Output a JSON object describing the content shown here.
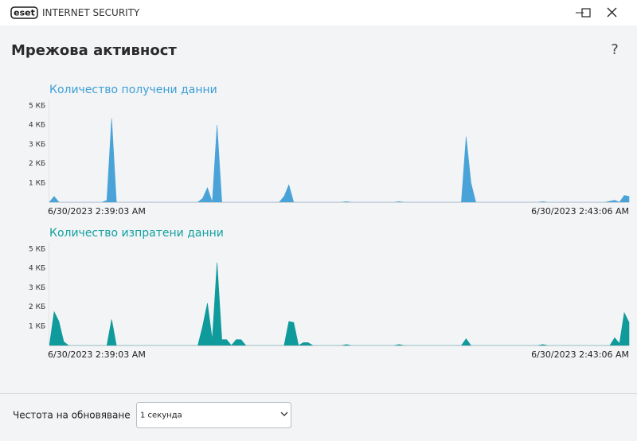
{
  "window": {
    "logo": "eset",
    "product": "INTERNET SECURITY"
  },
  "header": {
    "title": "Мрежова активност",
    "help": "?"
  },
  "chart_data": [
    {
      "type": "area",
      "title": "Количество получени данни",
      "color": "#4aa3d8",
      "title_color": "#3d9fd6",
      "ylim": [
        0,
        5
      ],
      "yticks": [
        {
          "value": 1,
          "label": "1 КБ"
        },
        {
          "value": 2,
          "label": "2 КБ"
        },
        {
          "value": 3,
          "label": "3 КБ"
        },
        {
          "value": 4,
          "label": "4 КБ"
        },
        {
          "value": 5,
          "label": "5 КБ"
        }
      ],
      "categories": [
        "6/30/2023 2:39:03 AM",
        null,
        null,
        null,
        null,
        null,
        null,
        null,
        null,
        null,
        null,
        null,
        null,
        null,
        null,
        null,
        null,
        null,
        null,
        null,
        null,
        null,
        null,
        null,
        null,
        null,
        null,
        null,
        null,
        null,
        null,
        null,
        null,
        null,
        null,
        null,
        null,
        null,
        null,
        null,
        null,
        null,
        null,
        null,
        null,
        null,
        null,
        null,
        null,
        null,
        null,
        null,
        null,
        null,
        null,
        null,
        null,
        null,
        null,
        null,
        null,
        null,
        null,
        null,
        null,
        null,
        null,
        null,
        null,
        null,
        null,
        null,
        null,
        null,
        null,
        null,
        null,
        null,
        null,
        null,
        null,
        null,
        null,
        null,
        null,
        null,
        null,
        null,
        null,
        null,
        null,
        null,
        null,
        null,
        null,
        null,
        null,
        null,
        null,
        null,
        null,
        null,
        null,
        null,
        null,
        null,
        null,
        null,
        null,
        null,
        null,
        null,
        null,
        null,
        null,
        null,
        null,
        null,
        null,
        null,
        null,
        "6/30/2023 2:43:06 AM"
      ],
      "values": [
        0,
        0.3,
        0,
        0,
        0,
        0,
        0,
        0,
        0,
        0,
        0,
        0,
        0.1,
        4.35,
        0,
        0,
        0,
        0,
        0,
        0,
        0,
        0,
        0,
        0,
        0,
        0,
        0,
        0,
        0,
        0,
        0,
        0,
        0.2,
        0.75,
        0,
        4.0,
        0,
        0,
        0,
        0,
        0,
        0,
        0,
        0,
        0,
        0,
        0,
        0,
        0,
        0.3,
        0.9,
        0,
        0,
        0,
        0,
        0,
        0,
        0,
        0,
        0,
        0,
        0,
        0.03,
        0,
        0,
        0,
        0,
        0,
        0,
        0,
        0,
        0,
        0,
        0.03,
        0,
        0,
        0,
        0,
        0,
        0,
        0,
        0,
        0,
        0,
        0,
        0,
        0,
        3.4,
        1.0,
        0,
        0,
        0,
        0,
        0,
        0,
        0,
        0,
        0,
        0,
        0,
        0,
        0,
        0,
        0.03,
        0,
        0,
        0,
        0,
        0,
        0,
        0,
        0,
        0,
        0,
        0,
        0,
        0,
        0.05,
        0.1,
        0,
        0.35,
        0.3
      ]
    },
    {
      "type": "area",
      "title": "Количество изпратени данни",
      "color": "#0f9a9b",
      "title_color": "#13a0a0",
      "ylim": [
        0,
        5
      ],
      "yticks": [
        {
          "value": 1,
          "label": "1 КБ"
        },
        {
          "value": 2,
          "label": "2 КБ"
        },
        {
          "value": 3,
          "label": "3 КБ"
        },
        {
          "value": 4,
          "label": "4 КБ"
        },
        {
          "value": 5,
          "label": "5 КБ"
        }
      ],
      "categories": [
        "6/30/2023 2:39:03 AM",
        null,
        null,
        null,
        null,
        null,
        null,
        null,
        null,
        null,
        null,
        null,
        null,
        null,
        null,
        null,
        null,
        null,
        null,
        null,
        null,
        null,
        null,
        null,
        null,
        null,
        null,
        null,
        null,
        null,
        null,
        null,
        null,
        null,
        null,
        null,
        null,
        null,
        null,
        null,
        null,
        null,
        null,
        null,
        null,
        null,
        null,
        null,
        null,
        null,
        null,
        null,
        null,
        null,
        null,
        null,
        null,
        null,
        null,
        null,
        null,
        null,
        null,
        null,
        null,
        null,
        null,
        null,
        null,
        null,
        null,
        null,
        null,
        null,
        null,
        null,
        null,
        null,
        null,
        null,
        null,
        null,
        null,
        null,
        null,
        null,
        null,
        null,
        null,
        null,
        null,
        null,
        null,
        null,
        null,
        null,
        null,
        null,
        null,
        null,
        null,
        null,
        null,
        null,
        null,
        null,
        null,
        null,
        null,
        null,
        null,
        null,
        null,
        null,
        null,
        null,
        null,
        null,
        null,
        null,
        null,
        "6/30/2023 2:43:06 AM"
      ],
      "values": [
        0,
        1.75,
        1.25,
        0.2,
        0,
        0,
        0,
        0,
        0,
        0,
        0,
        0,
        0,
        1.35,
        0,
        0,
        0,
        0,
        0,
        0,
        0,
        0,
        0,
        0,
        0,
        0,
        0,
        0,
        0,
        0,
        0,
        0,
        1.0,
        2.2,
        0.3,
        4.3,
        0.3,
        0.3,
        0,
        0.3,
        0.3,
        0,
        0,
        0,
        0,
        0,
        0,
        0,
        0,
        0,
        1.25,
        1.2,
        0,
        0.15,
        0.15,
        0,
        0,
        0,
        0,
        0,
        0,
        0,
        0.05,
        0,
        0,
        0,
        0,
        0,
        0,
        0,
        0,
        0,
        0,
        0.05,
        0,
        0,
        0,
        0,
        0,
        0,
        0,
        0,
        0,
        0,
        0,
        0,
        0,
        0.35,
        0,
        0,
        0,
        0,
        0,
        0,
        0,
        0,
        0,
        0,
        0,
        0,
        0,
        0,
        0,
        0.05,
        0,
        0,
        0,
        0,
        0,
        0,
        0,
        0,
        0,
        0,
        0,
        0,
        0,
        0,
        0.4,
        0.1,
        1.7,
        1.2
      ]
    }
  ],
  "footer": {
    "label": "Честота на обновяване",
    "select": "1 секунда"
  }
}
